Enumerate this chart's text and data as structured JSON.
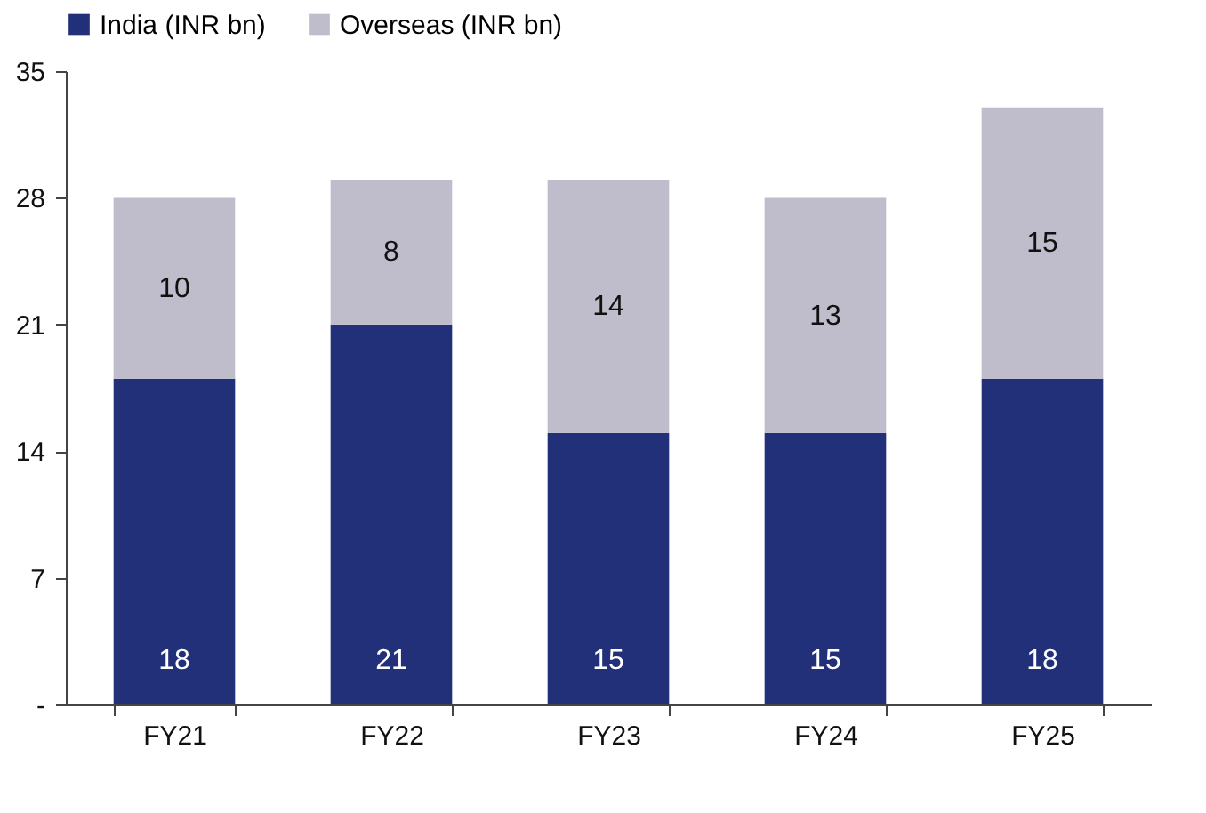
{
  "chart_data": {
    "type": "bar",
    "stacked": true,
    "categories": [
      "FY21",
      "FY22",
      "FY23",
      "FY24",
      "FY25"
    ],
    "series": [
      {
        "name": "India (INR bn)",
        "color": "#22307a",
        "values": [
          18,
          21,
          15,
          15,
          18
        ]
      },
      {
        "name": "Overseas (INR bn)",
        "color": "#bfbccb",
        "values": [
          10,
          8,
          14,
          13,
          15
        ]
      }
    ],
    "ylim": [
      0,
      35
    ],
    "yticks": [
      {
        "value": 0,
        "label": "-"
      },
      7,
      14,
      21,
      28,
      35
    ],
    "data_labels": true,
    "legend": "top",
    "grid": false
  }
}
